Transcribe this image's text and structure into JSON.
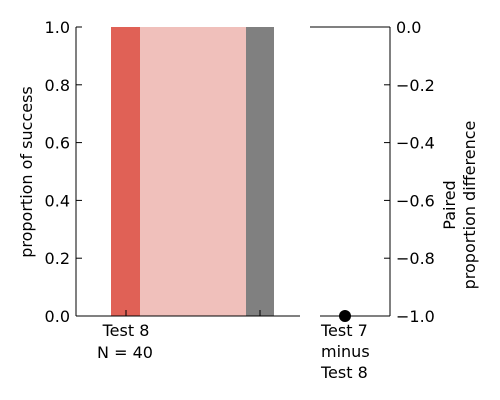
{
  "chart_data": [
    {
      "type": "bar",
      "ylabel": "proportion of success",
      "ylim": [
        0,
        1.0
      ],
      "yticks": [
        "0.0",
        "0.2",
        "0.4",
        "0.6",
        "0.8",
        "1.0"
      ],
      "categories": [
        {
          "name": "Test 8",
          "n_label": "N = 40"
        }
      ],
      "bars": [
        {
          "value": 1.0,
          "color": "#e06156"
        },
        {
          "value": 1.0,
          "color": "#f0c0bb"
        },
        {
          "value": 1.0,
          "color": "#808080"
        }
      ],
      "grid": false
    },
    {
      "type": "scatter",
      "ylabel_lines": [
        "Paired",
        "proportion difference"
      ],
      "ylim": [
        -1.0,
        0.0
      ],
      "yticks": [
        "0.0",
        "−0.2",
        "−0.4",
        "−0.6",
        "−0.8",
        "−1.0"
      ],
      "xlabel_lines": [
        "Test 7",
        "minus",
        "Test 8"
      ],
      "points": [
        {
          "y": -1.0,
          "color": "#000000"
        }
      ],
      "grid": false
    }
  ]
}
